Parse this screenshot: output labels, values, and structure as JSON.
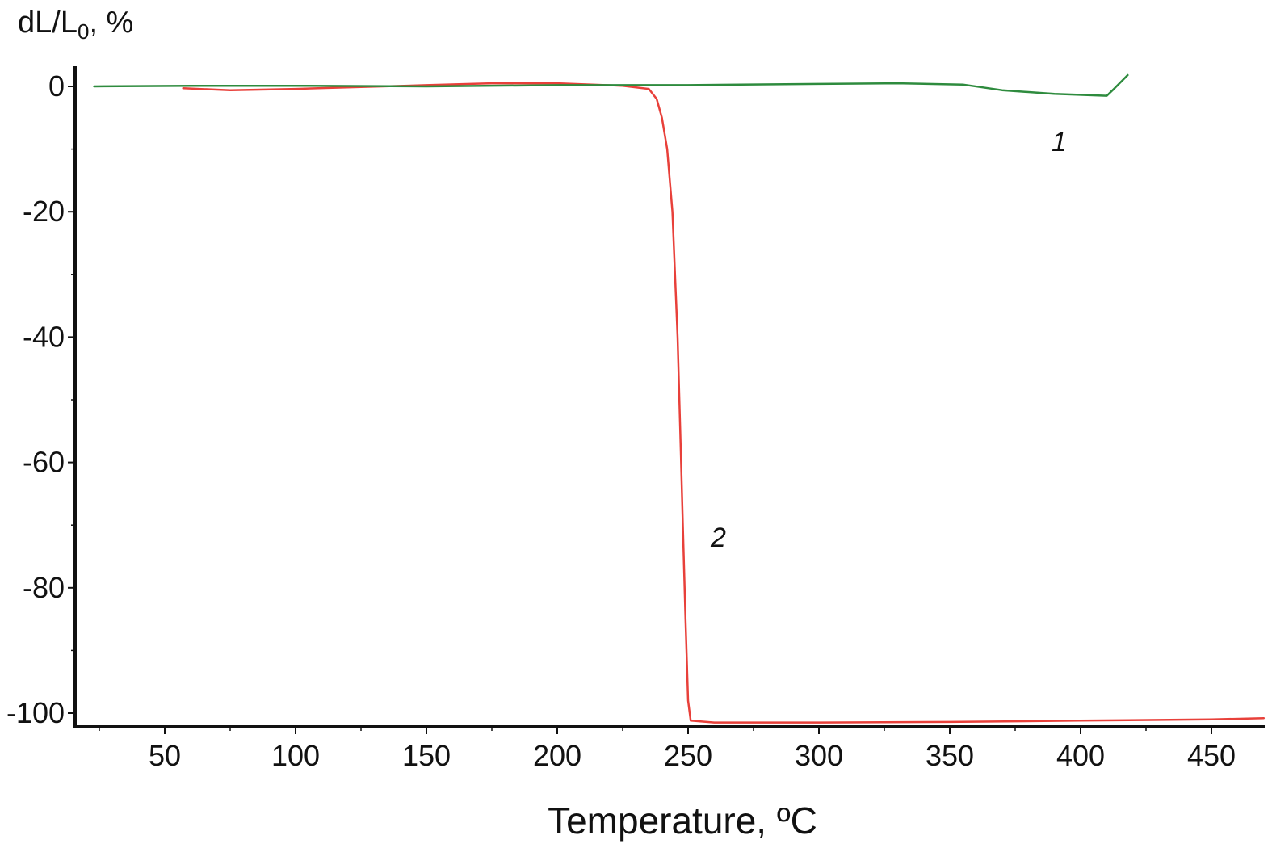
{
  "chart_data": {
    "type": "line",
    "title": "",
    "xlabel": "Temperature, ºC",
    "ylabel_main": "dL/L",
    "ylabel_sub": "0",
    "ylabel_suffix": ", %",
    "xlim": [
      20,
      471
    ],
    "ylim": [
      -102.5,
      3.5
    ],
    "x_ticks": [
      50,
      100,
      150,
      200,
      250,
      300,
      350,
      400,
      450
    ],
    "y_ticks": [
      0,
      -20,
      -40,
      -60,
      -80,
      -100
    ],
    "grid": false,
    "series": [
      {
        "name": "1",
        "color": "#2e8b3e",
        "x": [
          23,
          60,
          100,
          150,
          200,
          230,
          250,
          300,
          330,
          355,
          370,
          390,
          410,
          413,
          418
        ],
        "y": [
          0.0,
          0.1,
          0.1,
          0.0,
          0.2,
          0.2,
          0.2,
          0.4,
          0.5,
          0.3,
          -0.6,
          -1.2,
          -1.5,
          -0.3,
          1.8
        ]
      },
      {
        "name": "2",
        "color": "#e8403a",
        "x": [
          57,
          75,
          100,
          125,
          150,
          175,
          200,
          225,
          235,
          238,
          240,
          242,
          244,
          246,
          247,
          248,
          249,
          250,
          251,
          260,
          300,
          350,
          400,
          450,
          470
        ],
        "y": [
          -0.3,
          -0.6,
          -0.4,
          -0.1,
          0.2,
          0.5,
          0.5,
          0.1,
          -0.4,
          -2,
          -5,
          -10,
          -20,
          -40,
          -55,
          -70,
          -85,
          -98,
          -101.2,
          -101.5,
          -101.5,
          -101.4,
          -101.2,
          -101.0,
          -100.8
        ]
      }
    ]
  }
}
